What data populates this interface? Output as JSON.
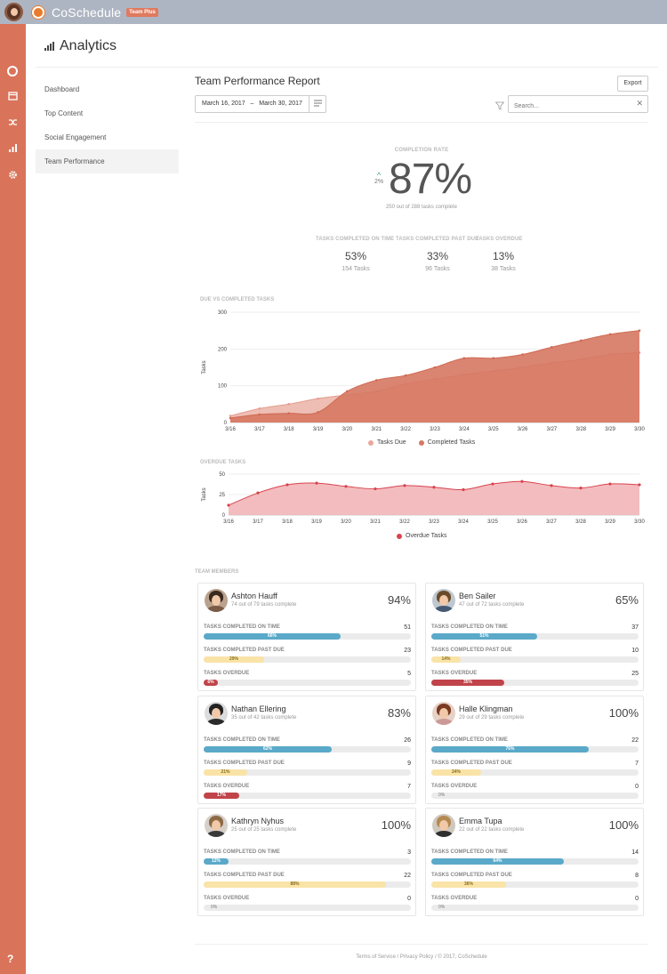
{
  "app": {
    "name": "CoSchedule",
    "badge": "Team Plus"
  },
  "colors": {
    "rail": "#d9745a",
    "topbar": "#aeb5c2",
    "due": "#e8a89b",
    "completed": "#d67862",
    "overdue": "#d9434e",
    "on_time_bar": "#5aa9c9",
    "past_due_bar": "#f9e3a6",
    "overdue_bar": "#c0444a"
  },
  "header": {
    "title": "Analytics",
    "icon": "bar-chart-icon"
  },
  "sidebar": {
    "items": [
      {
        "label": "Dashboard"
      },
      {
        "label": "Top Content"
      },
      {
        "label": "Social Engagement"
      },
      {
        "label": "Team Performance",
        "active": true
      }
    ]
  },
  "report": {
    "title": "Team Performance Report",
    "export_label": "Export",
    "date_from": "March 16, 2017",
    "date_sep": "–",
    "date_to": "March 30, 2017",
    "search_placeholder": "Search..."
  },
  "completion": {
    "label": "COMPLETION RATE",
    "rate": "87%",
    "delta": "2%",
    "subtitle": "250 out of 288 tasks complete"
  },
  "stats": [
    {
      "label": "TASKS COMPLETED ON TIME",
      "value": "53%",
      "sub": "154 Tasks"
    },
    {
      "label": "TASKS COMPLETED PAST DUE",
      "value": "33%",
      "sub": "96 Tasks"
    },
    {
      "label": "TASKS OVERDUE",
      "value": "13%",
      "sub": "38 Tasks"
    }
  ],
  "chart_data": [
    {
      "type": "area",
      "title": "DUE VS COMPLETED TASKS",
      "ylabel": "Tasks",
      "x": [
        "3/16",
        "3/17",
        "3/18",
        "3/19",
        "3/20",
        "3/21",
        "3/22",
        "3/23",
        "3/24",
        "3/25",
        "3/26",
        "3/27",
        "3/28",
        "3/29",
        "3/30"
      ],
      "ylim": [
        0,
        300
      ],
      "yticks": [
        "0",
        "100",
        "200",
        "300"
      ],
      "series": [
        {
          "name": "Tasks Due",
          "values": [
            18,
            38,
            50,
            65,
            75,
            85,
            105,
            118,
            130,
            140,
            150,
            162,
            172,
            185,
            190
          ]
        },
        {
          "name": "Completed Tasks",
          "values": [
            12,
            22,
            25,
            28,
            85,
            115,
            128,
            150,
            175,
            175,
            185,
            205,
            223,
            240,
            250
          ]
        }
      ],
      "legend": "bottom",
      "grid": true
    },
    {
      "type": "area",
      "title": "OVERDUE TASKS",
      "ylabel": "Tasks",
      "x": [
        "3/16",
        "3/17",
        "3/18",
        "3/19",
        "3/20",
        "3/21",
        "3/22",
        "3/23",
        "3/24",
        "3/25",
        "3/26",
        "3/27",
        "3/28",
        "3/29",
        "3/30"
      ],
      "ylim": [
        0,
        50
      ],
      "yticks": [
        "0",
        "25",
        "50"
      ],
      "series": [
        {
          "name": "Overdue Tasks",
          "values": [
            12,
            27,
            37,
            39,
            35,
            32,
            36,
            34,
            31,
            38,
            41,
            36,
            33,
            38,
            37
          ]
        }
      ],
      "legend": "bottom",
      "grid": true
    }
  ],
  "team": {
    "label": "TEAM MEMBERS",
    "row_labels": {
      "on_time": "TASKS COMPLETED ON TIME",
      "past_due": "TASKS COMPLETED PAST DUE",
      "overdue": "TASKS OVERDUE"
    },
    "members": [
      {
        "name": "Ashton Hauff",
        "sub": "74 out of 79 tasks complete",
        "pct": "94%",
        "on_time": "51",
        "on_time_pct": "66%",
        "on_time_frac": 0.66,
        "past_due": "23",
        "past_due_pct": "29%",
        "past_due_frac": 0.29,
        "overdue": "5",
        "overdue_pct": "6%",
        "overdue_frac": 0.06
      },
      {
        "name": "Ben Sailer",
        "sub": "47 out of 72 tasks complete",
        "pct": "65%",
        "on_time": "37",
        "on_time_pct": "51%",
        "on_time_frac": 0.51,
        "past_due": "10",
        "past_due_pct": "14%",
        "past_due_frac": 0.14,
        "overdue": "25",
        "overdue_pct": "35%",
        "overdue_frac": 0.35
      },
      {
        "name": "Nathan Ellering",
        "sub": "35 out of 42 tasks complete",
        "pct": "83%",
        "on_time": "26",
        "on_time_pct": "62%",
        "on_time_frac": 0.62,
        "past_due": "9",
        "past_due_pct": "21%",
        "past_due_frac": 0.21,
        "overdue": "7",
        "overdue_pct": "17%",
        "overdue_frac": 0.17
      },
      {
        "name": "Halle Klingman",
        "sub": "29 out of 29 tasks complete",
        "pct": "100%",
        "on_time": "22",
        "on_time_pct": "76%",
        "on_time_frac": 0.76,
        "past_due": "7",
        "past_due_pct": "24%",
        "past_due_frac": 0.24,
        "overdue": "0",
        "overdue_pct": "0%",
        "overdue_frac": 0
      },
      {
        "name": "Kathryn Nyhus",
        "sub": "25 out of 25 tasks complete",
        "pct": "100%",
        "on_time": "3",
        "on_time_pct": "12%",
        "on_time_frac": 0.12,
        "past_due": "22",
        "past_due_pct": "88%",
        "past_due_frac": 0.88,
        "overdue": "0",
        "overdue_pct": "0%",
        "overdue_frac": 0
      },
      {
        "name": "Emma Tupa",
        "sub": "22 out of 22 tasks complete",
        "pct": "100%",
        "on_time": "14",
        "on_time_pct": "64%",
        "on_time_frac": 0.64,
        "past_due": "8",
        "past_due_pct": "36%",
        "past_due_frac": 0.36,
        "overdue": "0",
        "overdue_pct": "0%",
        "overdue_frac": 0
      }
    ]
  },
  "footer": {
    "text": "Terms of Service / Privacy Policy / © 2017, CoSchedule"
  },
  "rail": {
    "help": "?"
  }
}
